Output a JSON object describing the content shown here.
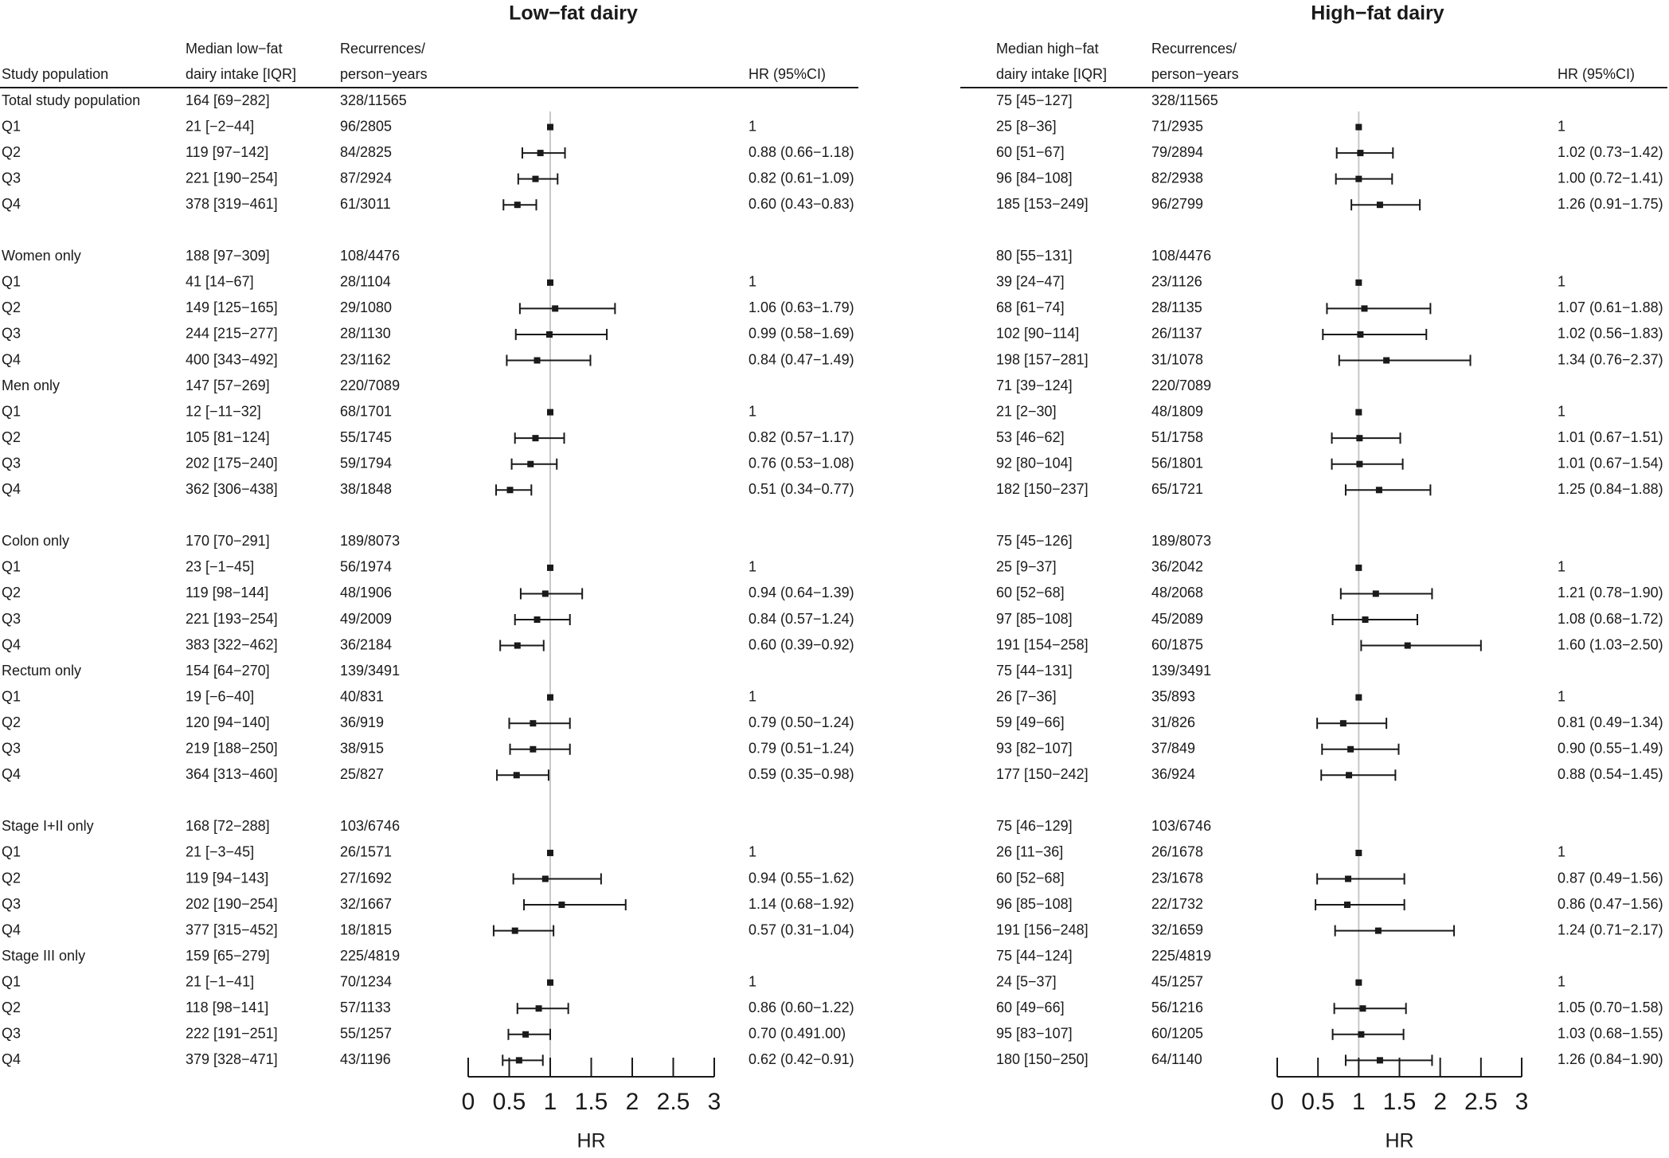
{
  "chart_data": [
    {
      "type": "forest",
      "title": "Low−fat dairy",
      "headers": {
        "population": "Study population",
        "intake": [
          "Median low−fat",
          "dairy intake [IQR]"
        ],
        "events": [
          "Recurrences/",
          "person−years"
        ],
        "hr": "HR (95%CI)"
      },
      "xlabel": "HR",
      "xlim": [
        0,
        3
      ],
      "xticks": [
        0,
        0.5,
        1,
        1.5,
        2,
        2.5,
        3
      ],
      "xtick_labels": [
        "0",
        "0.5",
        "1",
        "1.5",
        "2",
        "2.5",
        "3"
      ],
      "reference_line": 1,
      "groups": [
        {
          "name": "Total study population",
          "intake": "164 [69−282]",
          "events": "328/11565",
          "rows": [
            {
              "label": "Q1",
              "intake": "21 [−2−44]",
              "events": "96/2805",
              "hr_text": "1",
              "hr": 1,
              "lo": 1,
              "hi": 1
            },
            {
              "label": "Q2",
              "intake": "119 [97−142]",
              "events": "84/2825",
              "hr_text": "0.88 (0.66−1.18)",
              "hr": 0.88,
              "lo": 0.66,
              "hi": 1.18
            },
            {
              "label": "Q3",
              "intake": "221 [190−254]",
              "events": "87/2924",
              "hr_text": "0.82 (0.61−1.09)",
              "hr": 0.82,
              "lo": 0.61,
              "hi": 1.09
            },
            {
              "label": "Q4",
              "intake": "378 [319−461]",
              "events": "61/3011",
              "hr_text": "0.60 (0.43−0.83)",
              "hr": 0.6,
              "lo": 0.43,
              "hi": 0.83
            }
          ]
        },
        {
          "name": "Women only",
          "intake": "188 [97−309]",
          "events": "108/4476",
          "rows": [
            {
              "label": "Q1",
              "intake": "41 [14−67]",
              "events": "28/1104",
              "hr_text": "1",
              "hr": 1,
              "lo": 1,
              "hi": 1
            },
            {
              "label": "Q2",
              "intake": "149 [125−165]",
              "events": "29/1080",
              "hr_text": "1.06 (0.63−1.79)",
              "hr": 1.06,
              "lo": 0.63,
              "hi": 1.79
            },
            {
              "label": "Q3",
              "intake": "244 [215−277]",
              "events": "28/1130",
              "hr_text": "0.99 (0.58−1.69)",
              "hr": 0.99,
              "lo": 0.58,
              "hi": 1.69
            },
            {
              "label": "Q4",
              "intake": "400 [343−492]",
              "events": "23/1162",
              "hr_text": "0.84 (0.47−1.49)",
              "hr": 0.84,
              "lo": 0.47,
              "hi": 1.49
            }
          ]
        },
        {
          "name": "Men only",
          "intake": "147 [57−269]",
          "events": "220/7089",
          "rows": [
            {
              "label": "Q1",
              "intake": "12 [−11−32]",
              "events": "68/1701",
              "hr_text": "1",
              "hr": 1,
              "lo": 1,
              "hi": 1
            },
            {
              "label": "Q2",
              "intake": "105 [81−124]",
              "events": "55/1745",
              "hr_text": "0.82 (0.57−1.17)",
              "hr": 0.82,
              "lo": 0.57,
              "hi": 1.17
            },
            {
              "label": "Q3",
              "intake": "202 [175−240]",
              "events": "59/1794",
              "hr_text": "0.76 (0.53−1.08)",
              "hr": 0.76,
              "lo": 0.53,
              "hi": 1.08
            },
            {
              "label": "Q4",
              "intake": "362 [306−438]",
              "events": "38/1848",
              "hr_text": "0.51 (0.34−0.77)",
              "hr": 0.51,
              "lo": 0.34,
              "hi": 0.77
            }
          ]
        },
        {
          "name": "Colon only",
          "intake": "170 [70−291]",
          "events": "189/8073",
          "rows": [
            {
              "label": "Q1",
              "intake": "23 [−1−45]",
              "events": "56/1974",
              "hr_text": "1",
              "hr": 1,
              "lo": 1,
              "hi": 1
            },
            {
              "label": "Q2",
              "intake": "119 [98−144]",
              "events": "48/1906",
              "hr_text": "0.94 (0.64−1.39)",
              "hr": 0.94,
              "lo": 0.64,
              "hi": 1.39
            },
            {
              "label": "Q3",
              "intake": "221 [193−254]",
              "events": "49/2009",
              "hr_text": "0.84 (0.57−1.24)",
              "hr": 0.84,
              "lo": 0.57,
              "hi": 1.24
            },
            {
              "label": "Q4",
              "intake": "383 [322−462]",
              "events": "36/2184",
              "hr_text": "0.60 (0.39−0.92)",
              "hr": 0.6,
              "lo": 0.39,
              "hi": 0.92
            }
          ]
        },
        {
          "name": "Rectum only",
          "intake": "154 [64−270]",
          "events": "139/3491",
          "rows": [
            {
              "label": "Q1",
              "intake": "19 [−6−40]",
              "events": "40/831",
              "hr_text": "1",
              "hr": 1,
              "lo": 1,
              "hi": 1
            },
            {
              "label": "Q2",
              "intake": "120 [94−140]",
              "events": "36/919",
              "hr_text": "0.79 (0.50−1.24)",
              "hr": 0.79,
              "lo": 0.5,
              "hi": 1.24
            },
            {
              "label": "Q3",
              "intake": "219 [188−250]",
              "events": "38/915",
              "hr_text": "0.79 (0.51−1.24)",
              "hr": 0.79,
              "lo": 0.51,
              "hi": 1.24
            },
            {
              "label": "Q4",
              "intake": "364 [313−460]",
              "events": "25/827",
              "hr_text": "0.59 (0.35−0.98)",
              "hr": 0.59,
              "lo": 0.35,
              "hi": 0.98
            }
          ]
        },
        {
          "name": "Stage I+II only",
          "intake": "168 [72−288]",
          "events": "103/6746",
          "rows": [
            {
              "label": "Q1",
              "intake": "21 [−3−45]",
              "events": "26/1571",
              "hr_text": "1",
              "hr": 1,
              "lo": 1,
              "hi": 1
            },
            {
              "label": "Q2",
              "intake": "119 [94−143]",
              "events": "27/1692",
              "hr_text": "0.94 (0.55−1.62)",
              "hr": 0.94,
              "lo": 0.55,
              "hi": 1.62
            },
            {
              "label": "Q3",
              "intake": "202 [190−254]",
              "events": "32/1667",
              "hr_text": "1.14 (0.68−1.92)",
              "hr": 1.14,
              "lo": 0.68,
              "hi": 1.92
            },
            {
              "label": "Q4",
              "intake": "377 [315−452]",
              "events": "18/1815",
              "hr_text": "0.57 (0.31−1.04)",
              "hr": 0.57,
              "lo": 0.31,
              "hi": 1.04
            }
          ]
        },
        {
          "name": "Stage III only",
          "intake": "159 [65−279]",
          "events": "225/4819",
          "rows": [
            {
              "label": "Q1",
              "intake": "21 [−1−41]",
              "events": "70/1234",
              "hr_text": "1",
              "hr": 1,
              "lo": 1,
              "hi": 1
            },
            {
              "label": "Q2",
              "intake": "118 [98−141]",
              "events": "57/1133",
              "hr_text": "0.86 (0.60−1.22)",
              "hr": 0.86,
              "lo": 0.6,
              "hi": 1.22
            },
            {
              "label": "Q3",
              "intake": "222 [191−251]",
              "events": "55/1257",
              "hr_text": "0.70 (0.491.00)",
              "hr": 0.7,
              "lo": 0.49,
              "hi": 1.0
            },
            {
              "label": "Q4",
              "intake": "379 [328−471]",
              "events": "43/1196",
              "hr_text": "0.62 (0.42−0.91)",
              "hr": 0.62,
              "lo": 0.42,
              "hi": 0.91
            }
          ]
        }
      ]
    },
    {
      "type": "forest",
      "title": "High−fat dairy",
      "headers": {
        "population": "",
        "intake": [
          "Median high−fat",
          "dairy intake [IQR]"
        ],
        "events": [
          "Recurrences/",
          "person−years"
        ],
        "hr": "HR (95%CI)"
      },
      "xlabel": "HR",
      "xlim": [
        0,
        3
      ],
      "xticks": [
        0,
        0.5,
        1,
        1.5,
        2,
        2.5,
        3
      ],
      "xtick_labels": [
        "0",
        "0.5",
        "1",
        "1.5",
        "2",
        "2.5",
        "3"
      ],
      "reference_line": 1,
      "groups": [
        {
          "name": "Total study population",
          "intake": "75 [45−127]",
          "events": "328/11565",
          "rows": [
            {
              "label": "Q1",
              "intake": "25 [8−36]",
              "events": "71/2935",
              "hr_text": "1",
              "hr": 1,
              "lo": 1,
              "hi": 1
            },
            {
              "label": "Q2",
              "intake": "60 [51−67]",
              "events": "79/2894",
              "hr_text": "1.02 (0.73−1.42)",
              "hr": 1.02,
              "lo": 0.73,
              "hi": 1.42
            },
            {
              "label": "Q3",
              "intake": "96 [84−108]",
              "events": "82/2938",
              "hr_text": "1.00 (0.72−1.41)",
              "hr": 1.0,
              "lo": 0.72,
              "hi": 1.41
            },
            {
              "label": "Q4",
              "intake": "185 [153−249]",
              "events": "96/2799",
              "hr_text": "1.26 (0.91−1.75)",
              "hr": 1.26,
              "lo": 0.91,
              "hi": 1.75
            }
          ]
        },
        {
          "name": "Women only",
          "intake": "80 [55−131]",
          "events": "108/4476",
          "rows": [
            {
              "label": "Q1",
              "intake": "39 [24−47]",
              "events": "23/1126",
              "hr_text": "1",
              "hr": 1,
              "lo": 1,
              "hi": 1
            },
            {
              "label": "Q2",
              "intake": "68 [61−74]",
              "events": "28/1135",
              "hr_text": "1.07 (0.61−1.88)",
              "hr": 1.07,
              "lo": 0.61,
              "hi": 1.88
            },
            {
              "label": "Q3",
              "intake": "102 [90−114]",
              "events": "26/1137",
              "hr_text": "1.02 (0.56−1.83)",
              "hr": 1.02,
              "lo": 0.56,
              "hi": 1.83
            },
            {
              "label": "Q4",
              "intake": "198 [157−281]",
              "events": "31/1078",
              "hr_text": "1.34 (0.76−2.37)",
              "hr": 1.34,
              "lo": 0.76,
              "hi": 2.37
            }
          ]
        },
        {
          "name": "Men only",
          "intake": "71 [39−124]",
          "events": "220/7089",
          "rows": [
            {
              "label": "Q1",
              "intake": "21 [2−30]",
              "events": "48/1809",
              "hr_text": "1",
              "hr": 1,
              "lo": 1,
              "hi": 1
            },
            {
              "label": "Q2",
              "intake": "53 [46−62]",
              "events": "51/1758",
              "hr_text": "1.01 (0.67−1.51)",
              "hr": 1.01,
              "lo": 0.67,
              "hi": 1.51
            },
            {
              "label": "Q3",
              "intake": "92 [80−104]",
              "events": "56/1801",
              "hr_text": "1.01 (0.67−1.54)",
              "hr": 1.01,
              "lo": 0.67,
              "hi": 1.54
            },
            {
              "label": "Q4",
              "intake": "182 [150−237]",
              "events": "65/1721",
              "hr_text": "1.25 (0.84−1.88)",
              "hr": 1.25,
              "lo": 0.84,
              "hi": 1.88
            }
          ]
        },
        {
          "name": "Colon only",
          "intake": "75 [45−126]",
          "events": "189/8073",
          "rows": [
            {
              "label": "Q1",
              "intake": "25 [9−37]",
              "events": "36/2042",
              "hr_text": "1",
              "hr": 1,
              "lo": 1,
              "hi": 1
            },
            {
              "label": "Q2",
              "intake": "60 [52−68]",
              "events": "48/2068",
              "hr_text": "1.21 (0.78−1.90)",
              "hr": 1.21,
              "lo": 0.78,
              "hi": 1.9
            },
            {
              "label": "Q3",
              "intake": "97 [85−108]",
              "events": "45/2089",
              "hr_text": "1.08 (0.68−1.72)",
              "hr": 1.08,
              "lo": 0.68,
              "hi": 1.72
            },
            {
              "label": "Q4",
              "intake": "191 [154−258]",
              "events": "60/1875",
              "hr_text": "1.60 (1.03−2.50)",
              "hr": 1.6,
              "lo": 1.03,
              "hi": 2.5
            }
          ]
        },
        {
          "name": "Rectum only",
          "intake": "75 [44−131]",
          "events": "139/3491",
          "rows": [
            {
              "label": "Q1",
              "intake": "26 [7−36]",
              "events": "35/893",
              "hr_text": "1",
              "hr": 1,
              "lo": 1,
              "hi": 1
            },
            {
              "label": "Q2",
              "intake": "59 [49−66]",
              "events": "31/826",
              "hr_text": "0.81 (0.49−1.34)",
              "hr": 0.81,
              "lo": 0.49,
              "hi": 1.34
            },
            {
              "label": "Q3",
              "intake": "93 [82−107]",
              "events": "37/849",
              "hr_text": "0.90 (0.55−1.49)",
              "hr": 0.9,
              "lo": 0.55,
              "hi": 1.49
            },
            {
              "label": "Q4",
              "intake": "177 [150−242]",
              "events": "36/924",
              "hr_text": "0.88 (0.54−1.45)",
              "hr": 0.88,
              "lo": 0.54,
              "hi": 1.45
            }
          ]
        },
        {
          "name": "Stage I+II only",
          "intake": "75 [46−129]",
          "events": "103/6746",
          "rows": [
            {
              "label": "Q1",
              "intake": "26 [11−36]",
              "events": "26/1678",
              "hr_text": "1",
              "hr": 1,
              "lo": 1,
              "hi": 1
            },
            {
              "label": "Q2",
              "intake": "60 [52−68]",
              "events": "23/1678",
              "hr_text": "0.87 (0.49−1.56)",
              "hr": 0.87,
              "lo": 0.49,
              "hi": 1.56
            },
            {
              "label": "Q3",
              "intake": "96 [85−108]",
              "events": "22/1732",
              "hr_text": "0.86 (0.47−1.56)",
              "hr": 0.86,
              "lo": 0.47,
              "hi": 1.56
            },
            {
              "label": "Q4",
              "intake": "191 [156−248]",
              "events": "32/1659",
              "hr_text": "1.24 (0.71−2.17)",
              "hr": 1.24,
              "lo": 0.71,
              "hi": 2.17
            }
          ]
        },
        {
          "name": "Stage III only",
          "intake": "75 [44−124]",
          "events": "225/4819",
          "rows": [
            {
              "label": "Q1",
              "intake": "24 [5−37]",
              "events": "45/1257",
              "hr_text": "1",
              "hr": 1,
              "lo": 1,
              "hi": 1
            },
            {
              "label": "Q2",
              "intake": "60 [49−66]",
              "events": "56/1216",
              "hr_text": "1.05 (0.70−1.58)",
              "hr": 1.05,
              "lo": 0.7,
              "hi": 1.58
            },
            {
              "label": "Q3",
              "intake": "95 [83−107]",
              "events": "60/1205",
              "hr_text": "1.03 (0.68−1.55)",
              "hr": 1.03,
              "lo": 0.68,
              "hi": 1.55
            },
            {
              "label": "Q4",
              "intake": "180 [150−250]",
              "events": "64/1140",
              "hr_text": "1.26 (0.84−1.90)",
              "hr": 1.26,
              "lo": 0.84,
              "hi": 1.9
            }
          ]
        }
      ]
    }
  ],
  "colors": {
    "text": "#1a1a1a",
    "marker": "#1a1a1a",
    "reference_line": "#c8c8c8"
  }
}
